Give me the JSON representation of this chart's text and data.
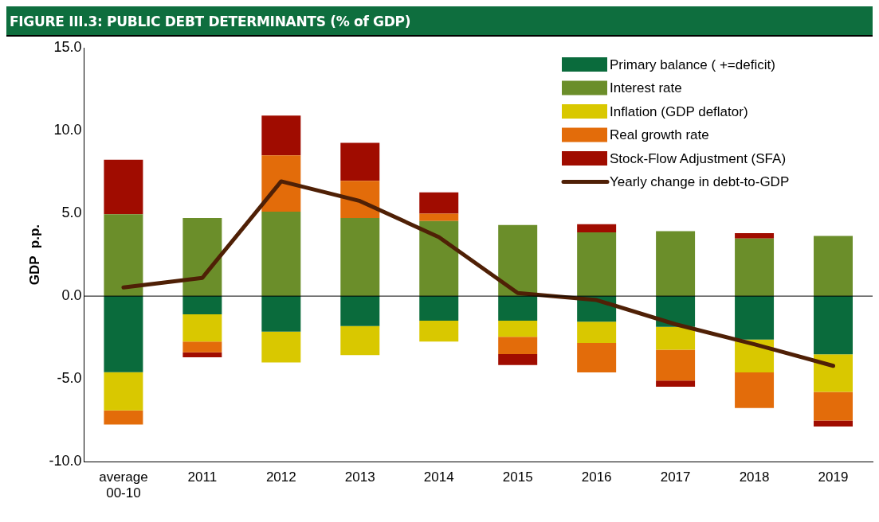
{
  "chart_data": {
    "type": "bar",
    "title": "FIGURE III.3: PUBLIC DEBT DETERMINANTS  (% of GDP)",
    "ylabel": "GDP  p.p.",
    "categories": [
      "average 00-10",
      "2011",
      "2012",
      "2013",
      "2014",
      "2015",
      "2016",
      "2017",
      "2018",
      "2019"
    ],
    "stacked": true,
    "series": [
      {
        "name": "Primary balance ( +=deficit)",
        "color": "#0a6b3c",
        "values": [
          -4.6,
          -1.1,
          -2.14,
          -1.81,
          -1.49,
          -1.49,
          -1.54,
          -1.86,
          -2.62,
          -3.51
        ]
      },
      {
        "name": "Interest rate",
        "color": "#6b8e2a",
        "values": [
          4.94,
          4.72,
          5.1,
          4.72,
          4.53,
          4.29,
          3.85,
          3.92,
          3.48,
          3.64
        ]
      },
      {
        "name": "Inflation (GDP deflator)",
        "color": "#d9c800",
        "values": [
          -2.3,
          -1.65,
          -1.87,
          -1.75,
          -1.26,
          -0.97,
          -1.29,
          -1.38,
          -1.99,
          -2.28
        ]
      },
      {
        "name": "Real growth rate",
        "color": "#e36c0a",
        "values": [
          -0.85,
          -0.65,
          3.4,
          2.24,
          0.45,
          -1.04,
          -1.78,
          -1.86,
          -2.15,
          -1.73
        ]
      },
      {
        "name": "Stock-Flow Adjustment (SFA)",
        "color": "#a00c00",
        "values": [
          3.3,
          -0.29,
          2.4,
          2.3,
          1.28,
          -0.66,
          0.49,
          -0.37,
          0.32,
          -0.36
        ]
      },
      {
        "name": "Yearly change in debt-to-GDP",
        "type": "line",
        "color": "#4f2006",
        "values": [
          0.52,
          1.1,
          6.93,
          5.74,
          3.56,
          0.19,
          -0.24,
          -1.7,
          -2.91,
          -4.21
        ]
      }
    ],
    "ylim": [
      -10,
      15
    ],
    "yticks": [
      {
        "value": -10,
        "label": "-10.0"
      },
      {
        "value": -5,
        "label": "-5.0"
      },
      {
        "value": 0,
        "label": "0.0"
      },
      {
        "value": 5,
        "label": "5.0"
      },
      {
        "value": 10,
        "label": "10.0"
      },
      {
        "value": 15,
        "label": "15.0"
      }
    ],
    "legend": "top right",
    "marker": "none"
  }
}
